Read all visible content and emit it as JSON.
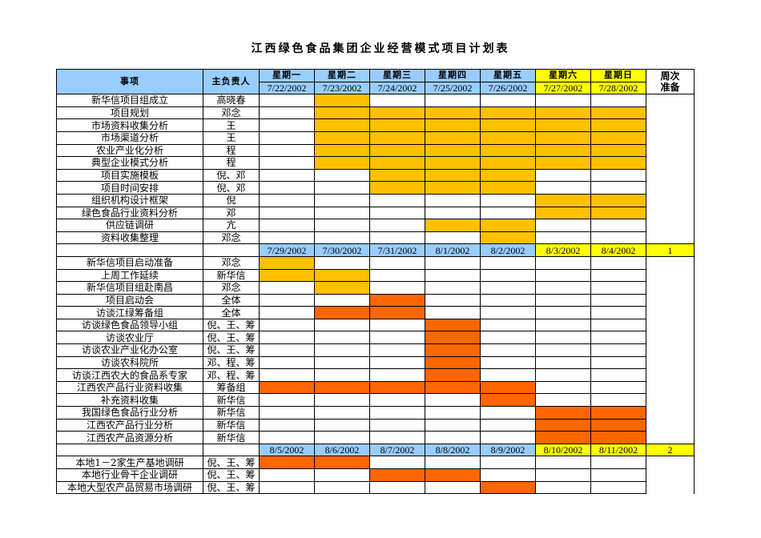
{
  "title": "江西绿色食品集团企业经营模式项目计划表",
  "headers": {
    "item": "事项",
    "owner": "主负责人",
    "days": [
      "星期一",
      "星期二",
      "星期三",
      "星期四",
      "星期五",
      "星期六",
      "星期日"
    ],
    "week_col": "周次准备",
    "week_col_lines": [
      "周次",
      "准备"
    ]
  },
  "colors": {
    "header_blue": "#99ccff",
    "weekend_yellow": "#ffff00",
    "orange": "#ffc000",
    "red_orange": "#ff6600"
  },
  "sections": [
    {
      "dates": [
        "7/22/2002",
        "7/23/2002",
        "7/24/2002",
        "7/25/2002",
        "7/26/2002",
        "7/27/2002",
        "7/28/2002"
      ],
      "week": "",
      "rows": [
        {
          "task": "新华信项目组成立",
          "owner": "高晓春",
          "cells": [
            "",
            "O",
            "",
            "",
            "",
            "",
            ""
          ]
        },
        {
          "task": "项目规划",
          "owner": "邓念",
          "cells": [
            "",
            "O",
            "O",
            "O",
            "O",
            "O",
            "O"
          ]
        },
        {
          "task": "市场资料收集分析",
          "owner": "王",
          "cells": [
            "",
            "O",
            "O",
            "O",
            "O",
            "O",
            "O"
          ]
        },
        {
          "task": "市场渠道分析",
          "owner": "王",
          "cells": [
            "",
            "O",
            "O",
            "O",
            "O",
            "O",
            "O"
          ]
        },
        {
          "task": "农业产业化分析",
          "owner": "程",
          "cells": [
            "",
            "O",
            "O",
            "O",
            "O",
            "O",
            "O"
          ]
        },
        {
          "task": "典型企业模式分析",
          "owner": "程",
          "cells": [
            "",
            "O",
            "O",
            "O",
            "O",
            "O",
            "O"
          ]
        },
        {
          "task": "项目实施模板",
          "owner": "倪、邓",
          "cells": [
            "",
            "",
            "O",
            "O",
            "O",
            "",
            ""
          ]
        },
        {
          "task": "项目时间安排",
          "owner": "倪、邓",
          "cells": [
            "",
            "",
            "O",
            "O",
            "O",
            "",
            ""
          ]
        },
        {
          "task": "组织机构设计框架",
          "owner": "倪",
          "cells": [
            "",
            "",
            "",
            "",
            "",
            "O",
            "O"
          ]
        },
        {
          "task": "绿色食品行业资料分析",
          "owner": "邓",
          "cells": [
            "",
            "",
            "",
            "",
            "",
            "O",
            "O"
          ]
        },
        {
          "task": "供应链调研",
          "owner": "亢",
          "cells": [
            "",
            "",
            "",
            "O",
            "O",
            "",
            ""
          ]
        },
        {
          "task": "资料收集整理",
          "owner": "邓念",
          "cells": [
            "",
            "",
            "",
            "",
            "O",
            "",
            ""
          ]
        }
      ]
    },
    {
      "dates": [
        "7/29/2002",
        "7/30/2002",
        "7/31/2002",
        "8/1/2002",
        "8/2/2002",
        "8/3/2002",
        "8/4/2002"
      ],
      "week": "1",
      "rows": [
        {
          "task": "新华信项目启动准备",
          "owner": "邓念",
          "cells": [
            "O",
            "",
            "",
            "",
            "",
            "",
            ""
          ]
        },
        {
          "task": "上周工作延续",
          "owner": "新华信",
          "cells": [
            "O",
            "O",
            "",
            "",
            "",
            "",
            ""
          ]
        },
        {
          "task": "新华信项目组赴南昌",
          "owner": "邓念",
          "cells": [
            "",
            "O",
            "",
            "",
            "",
            "",
            ""
          ]
        },
        {
          "task": "项目启动会",
          "owner": "全体",
          "cells": [
            "",
            "",
            "R",
            "",
            "",
            "",
            ""
          ]
        },
        {
          "task": "访谈江绿筹备组",
          "owner": "全体",
          "cells": [
            "",
            "R",
            "R",
            "",
            "",
            "",
            ""
          ]
        },
        {
          "task": "访谈绿色食品领导小组",
          "owner": "倪、王、筹",
          "cells": [
            "",
            "",
            "",
            "R",
            "",
            "",
            ""
          ]
        },
        {
          "task": "访谈农业厅",
          "owner": "倪、王、筹",
          "cells": [
            "",
            "",
            "",
            "R",
            "",
            "",
            ""
          ]
        },
        {
          "task": "访谈农业产业化办公室",
          "owner": "倪、王、筹",
          "cells": [
            "",
            "",
            "",
            "R",
            "",
            "",
            ""
          ]
        },
        {
          "task": "访谈农科院所",
          "owner": "邓、程、筹",
          "cells": [
            "",
            "",
            "",
            "R",
            "",
            "",
            ""
          ]
        },
        {
          "task": "访谈江西农大的食品系专家",
          "owner": "邓、程、筹",
          "cells": [
            "",
            "",
            "",
            "R",
            "",
            "",
            ""
          ]
        },
        {
          "task": "江西农产品行业资料收集",
          "owner": "筹备组",
          "cells": [
            "R",
            "R",
            "R",
            "R",
            "R",
            "",
            ""
          ]
        },
        {
          "task": "补充资料收集",
          "owner": "新华信",
          "cells": [
            "",
            "",
            "",
            "",
            "R",
            "",
            ""
          ]
        },
        {
          "task": "我国绿色食品行业分析",
          "owner": "新华信",
          "cells": [
            "",
            "",
            "",
            "",
            "",
            "R",
            "R"
          ]
        },
        {
          "task": "江西农产品行业分析",
          "owner": "新华信",
          "cells": [
            "",
            "",
            "",
            "",
            "",
            "R",
            "R"
          ]
        },
        {
          "task": "江西农产品资源分析",
          "owner": "新华信",
          "cells": [
            "",
            "",
            "",
            "",
            "",
            "R",
            "R"
          ]
        }
      ]
    },
    {
      "dates": [
        "8/5/2002",
        "8/6/2002",
        "8/7/2002",
        "8/8/2002",
        "8/9/2002",
        "8/10/2002",
        "8/11/2002"
      ],
      "week": "2",
      "rows": [
        {
          "task": "本地1－2家生产基地调研",
          "owner": "倪、王、筹",
          "cells": [
            "R",
            "R",
            "",
            "",
            "",
            "",
            ""
          ]
        },
        {
          "task": "本地行业骨干企业调研",
          "owner": "倪、王、筹",
          "cells": [
            "",
            "",
            "R",
            "R",
            "",
            "",
            ""
          ]
        },
        {
          "task": "本地大型农产品贸易市场调研",
          "owner": "倪、王、筹",
          "cells": [
            "",
            "",
            "",
            "",
            "R",
            "",
            ""
          ]
        }
      ]
    }
  ]
}
